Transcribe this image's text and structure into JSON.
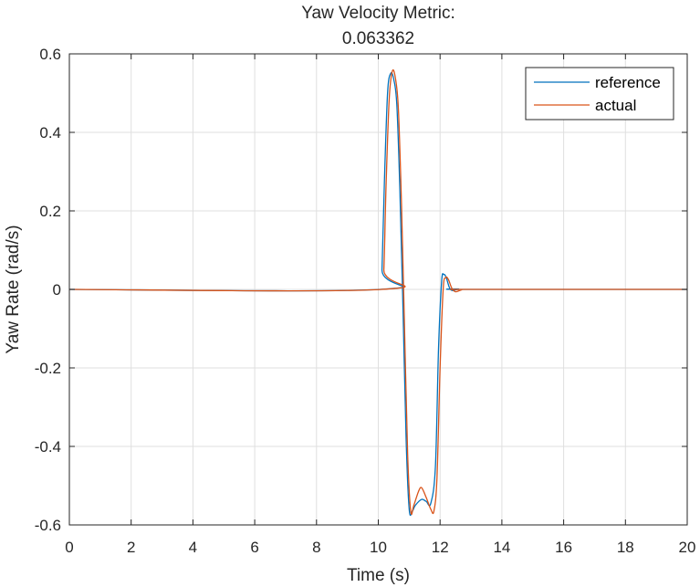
{
  "chart_data": {
    "type": "line",
    "title": "Yaw Velocity Metric:",
    "subtitle": "0.063362",
    "xlabel": "Time (s)",
    "ylabel": "Yaw Rate (rad/s)",
    "xlim": [
      0,
      20
    ],
    "ylim": [
      -0.6,
      0.6
    ],
    "xticks": [
      0,
      2,
      4,
      6,
      8,
      10,
      12,
      14,
      16,
      18,
      20
    ],
    "yticks": [
      -0.6,
      -0.4,
      -0.2,
      0,
      0.2,
      0.4,
      0.6
    ],
    "xtick_labels": [
      "0",
      "2",
      "4",
      "6",
      "8",
      "10",
      "12",
      "14",
      "16",
      "18",
      "20"
    ],
    "ytick_labels": [
      "-0.6",
      "-0.4",
      "-0.2",
      "0",
      "0.2",
      "0.4",
      "0.6"
    ],
    "grid": true,
    "legend_position": "top-right",
    "series": [
      {
        "name": "reference",
        "color": "#0072BD",
        "points": [
          [
            0,
            0
          ],
          [
            10.05,
            0
          ],
          [
            10.12,
            0.05
          ],
          [
            10.2,
            0.28
          ],
          [
            10.3,
            0.5
          ],
          [
            10.4,
            0.55
          ],
          [
            10.5,
            0.535
          ],
          [
            10.6,
            0.47
          ],
          [
            10.7,
            0.25
          ],
          [
            10.8,
            -0.05
          ],
          [
            10.9,
            -0.38
          ],
          [
            11.0,
            -0.56
          ],
          [
            11.1,
            -0.565
          ],
          [
            11.2,
            -0.55
          ],
          [
            11.4,
            -0.535
          ],
          [
            11.55,
            -0.54
          ],
          [
            11.7,
            -0.545
          ],
          [
            11.85,
            -0.45
          ],
          [
            11.95,
            -0.15
          ],
          [
            12.05,
            0.02
          ],
          [
            12.12,
            0.038
          ],
          [
            12.2,
            0.03
          ],
          [
            12.3,
            0.005
          ],
          [
            12.4,
            -0.003
          ],
          [
            12.6,
            0.001
          ],
          [
            12.8,
            0
          ],
          [
            20,
            0
          ]
        ]
      },
      {
        "name": "actual",
        "color": "#D95319",
        "points": [
          [
            0,
            0
          ],
          [
            10.1,
            0
          ],
          [
            10.18,
            0.05
          ],
          [
            10.25,
            0.26
          ],
          [
            10.35,
            0.48
          ],
          [
            10.45,
            0.555
          ],
          [
            10.55,
            0.54
          ],
          [
            10.65,
            0.46
          ],
          [
            10.75,
            0.22
          ],
          [
            10.85,
            -0.1
          ],
          [
            10.95,
            -0.42
          ],
          [
            11.05,
            -0.565
          ],
          [
            11.15,
            -0.55
          ],
          [
            11.3,
            -0.515
          ],
          [
            11.4,
            -0.505
          ],
          [
            11.55,
            -0.53
          ],
          [
            11.7,
            -0.56
          ],
          [
            11.8,
            -0.565
          ],
          [
            11.9,
            -0.48
          ],
          [
            12.0,
            -0.2
          ],
          [
            12.1,
            0.0
          ],
          [
            12.18,
            0.03
          ],
          [
            12.27,
            0.025
          ],
          [
            12.38,
            0.003
          ],
          [
            12.5,
            -0.006
          ],
          [
            12.7,
            -0.001
          ],
          [
            12.9,
            0
          ],
          [
            20,
            0
          ]
        ]
      }
    ]
  }
}
